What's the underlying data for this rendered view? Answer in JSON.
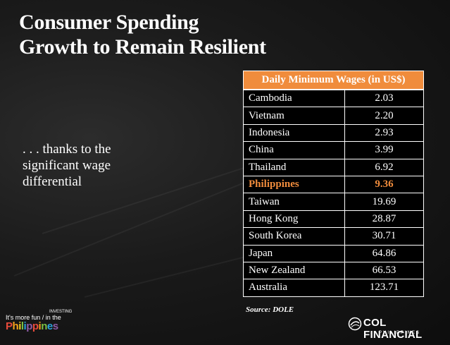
{
  "title": {
    "line1": "Consumer Spending",
    "line2": "Growth to Remain Resilient"
  },
  "note": ". . . thanks to the significant wage differential",
  "table": {
    "header": "Daily Minimum Wages (in US$)",
    "rows": [
      {
        "country": "Cambodia",
        "value": "2.03"
      },
      {
        "country": "Vietnam",
        "value": "2.20"
      },
      {
        "country": "Indonesia",
        "value": "2.93"
      },
      {
        "country": "China",
        "value": "3.99"
      },
      {
        "country": "Thailand",
        "value": "6.92"
      },
      {
        "country": "Philippines",
        "value": "9.36"
      },
      {
        "country": "Taiwan",
        "value": "19.69"
      },
      {
        "country": "Hong Kong",
        "value": "28.87"
      },
      {
        "country": "South Korea",
        "value": "30.71"
      },
      {
        "country": "Japan",
        "value": "64.86"
      },
      {
        "country": "New Zealand",
        "value": "66.53"
      },
      {
        "country": "Australia",
        "value": "123.71"
      }
    ],
    "highlight_country": "Philippines",
    "highlight_color": "#f08c3c"
  },
  "source": "Source: DOLE",
  "branding": {
    "left_line1": "It's more fun",
    "left_line1b": "in the",
    "left_investing": "INVESTING",
    "left_word": "Philippines",
    "right_name": "COL FINANCIAL",
    "right_sub": "PHILIPPINES"
  },
  "colors": {
    "accent": "#f08c3c",
    "background": "#141414"
  }
}
